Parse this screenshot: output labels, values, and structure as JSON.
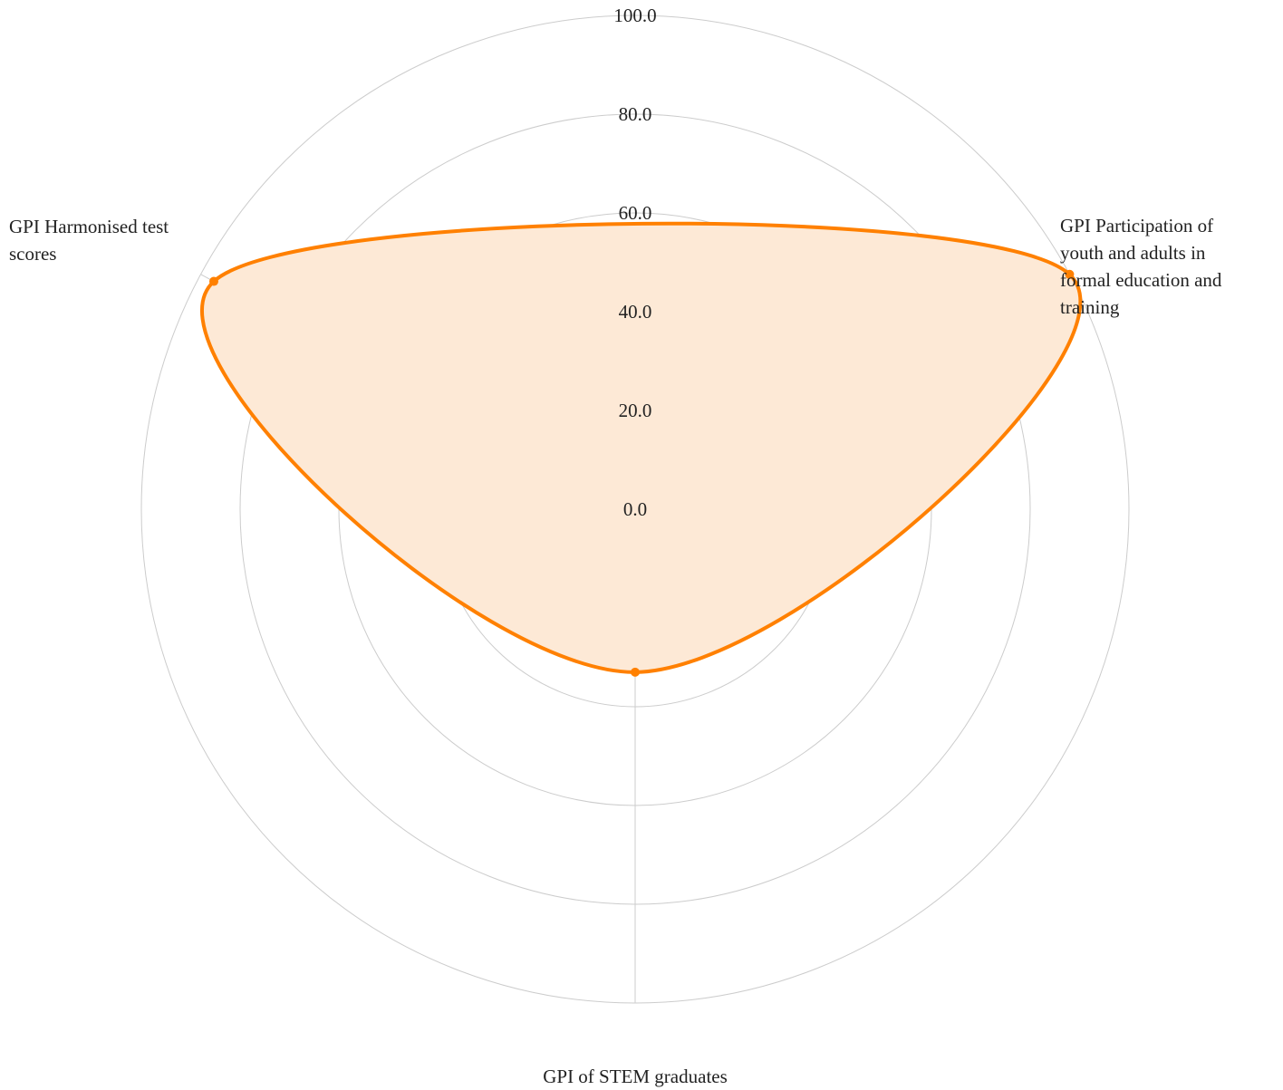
{
  "colors": {
    "series": "#ff8000",
    "fill": "#fde9d6",
    "grid": "#cccccc",
    "text": "#222222"
  },
  "chart_data": {
    "type": "radar",
    "title": "",
    "axes": [
      "GPI Participation of youth and adults in formal education and training",
      "GPI of STEM graduates",
      "GPI Harmonised test scores"
    ],
    "axis_label_lines": [
      [
        "GPI Participation of",
        "youth and adults in",
        "formal education and",
        "training"
      ],
      [
        "GPI of STEM graduates"
      ],
      [
        "GPI Harmonised test",
        "scores"
      ]
    ],
    "r_range": [
      0,
      100
    ],
    "r_ticks": [
      "0.0",
      "20.0",
      "40.0",
      "60.0",
      "80.0",
      "100.0"
    ],
    "series": [
      {
        "values": [
          100,
          33,
          97
        ]
      }
    ],
    "grid": true,
    "legend": "none"
  }
}
